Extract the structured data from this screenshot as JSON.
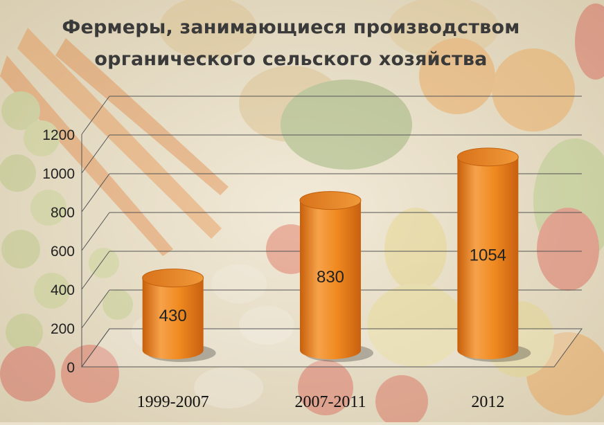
{
  "chart_data": {
    "type": "bar",
    "title_line1": "Фермеры, занимающиеся производством",
    "title_line2": "органического сельского хозяйства",
    "categories": [
      "1999-2007",
      "2007-2011",
      "2012"
    ],
    "values": [
      430,
      830,
      1054
    ],
    "value_labels": [
      "430",
      "830",
      "1054"
    ],
    "y_ticks": [
      "0",
      "200",
      "400",
      "600",
      "800",
      "1000",
      "1200"
    ],
    "ylim": [
      0,
      1200
    ],
    "grid": true,
    "bar_color": "#f2891f",
    "bar_top_color": "#e47713"
  }
}
